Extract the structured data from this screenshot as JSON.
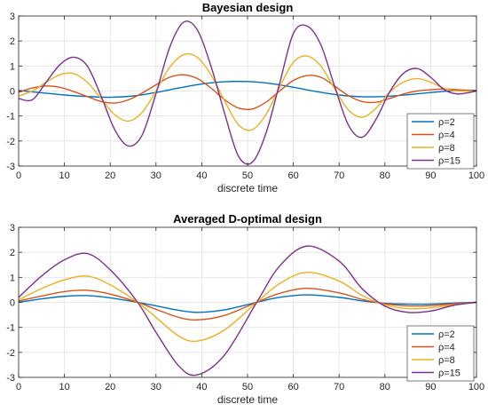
{
  "chart_data": [
    {
      "type": "line",
      "title": "Bayesian design",
      "xlabel": "discrete time",
      "ylabel": "",
      "xlim": [
        0,
        100
      ],
      "ylim": [
        -3,
        3
      ],
      "xticks": [
        0,
        10,
        20,
        30,
        40,
        50,
        60,
        70,
        80,
        90,
        100
      ],
      "yticks": [
        -3,
        -2,
        -1,
        0,
        1,
        2,
        3
      ],
      "grid": true,
      "legend": "bottom-right",
      "series": [
        {
          "name": "ρ=2",
          "color": "#0072BD",
          "x": [
            0,
            5,
            10,
            15,
            20,
            25,
            30,
            35,
            40,
            45,
            50,
            55,
            60,
            65,
            70,
            75,
            80,
            85,
            90,
            95,
            100
          ],
          "y": [
            0.02,
            -0.07,
            -0.16,
            -0.22,
            -0.25,
            -0.2,
            -0.06,
            0.12,
            0.28,
            0.37,
            0.38,
            0.3,
            0.15,
            -0.02,
            -0.16,
            -0.23,
            -0.22,
            -0.15,
            -0.06,
            0.01,
            0.03
          ]
        },
        {
          "name": "ρ=4",
          "color": "#D95319",
          "x": [
            0,
            3,
            6,
            9,
            12,
            15,
            18,
            21,
            24,
            27,
            30,
            33,
            36,
            39,
            42,
            45,
            48,
            51,
            54,
            57,
            60,
            63,
            66,
            69,
            72,
            75,
            78,
            81,
            84,
            87,
            90,
            93,
            96,
            100
          ],
          "y": [
            -0.05,
            0.12,
            0.2,
            0.15,
            -0.02,
            -0.22,
            -0.42,
            -0.48,
            -0.35,
            -0.08,
            0.25,
            0.55,
            0.65,
            0.5,
            0.12,
            -0.35,
            -0.68,
            -0.72,
            -0.45,
            0.0,
            0.42,
            0.62,
            0.55,
            0.2,
            -0.18,
            -0.42,
            -0.45,
            -0.3,
            -0.12,
            0.0,
            0.05,
            0.08,
            0.05,
            0.0
          ]
        },
        {
          "name": "ρ=8",
          "color": "#EDB120",
          "x": [
            0,
            3,
            6,
            9,
            12,
            15,
            18,
            21,
            24,
            27,
            30,
            33,
            36,
            39,
            42,
            45,
            48,
            51,
            54,
            57,
            60,
            63,
            66,
            69,
            72,
            75,
            78,
            81,
            84,
            87,
            90,
            93,
            96,
            100
          ],
          "y": [
            -0.2,
            0.0,
            0.35,
            0.65,
            0.7,
            0.35,
            -0.3,
            -0.95,
            -1.2,
            -0.85,
            0.0,
            0.95,
            1.45,
            1.35,
            0.65,
            -0.4,
            -1.35,
            -1.55,
            -0.95,
            0.15,
            1.15,
            1.4,
            1.0,
            0.1,
            -0.75,
            -1.05,
            -0.7,
            -0.05,
            0.35,
            0.5,
            0.35,
            0.1,
            0.0,
            0.0
          ]
        },
        {
          "name": "ρ=15",
          "color": "#7E2F8E",
          "x": [
            0,
            3,
            6,
            9,
            12,
            15,
            18,
            21,
            24,
            27,
            30,
            33,
            36,
            39,
            42,
            45,
            48,
            51,
            54,
            57,
            60,
            63,
            66,
            69,
            72,
            75,
            78,
            81,
            84,
            87,
            90,
            93,
            96,
            100
          ],
          "y": [
            -0.3,
            -0.35,
            0.35,
            1.05,
            1.35,
            1.0,
            -0.2,
            -1.55,
            -2.2,
            -1.75,
            -0.1,
            1.75,
            2.75,
            2.45,
            1.0,
            -0.9,
            -2.6,
            -2.85,
            -1.7,
            0.3,
            2.3,
            2.6,
            1.85,
            0.2,
            -1.35,
            -1.85,
            -1.15,
            -0.05,
            0.7,
            0.9,
            0.55,
            0.05,
            -0.12,
            0.0
          ]
        }
      ]
    },
    {
      "type": "line",
      "title": "Averaged D-optimal design",
      "xlabel": "discrete time",
      "ylabel": "",
      "xlim": [
        0,
        100
      ],
      "ylim": [
        -3,
        3
      ],
      "xticks": [
        0,
        10,
        20,
        30,
        40,
        50,
        60,
        70,
        80,
        90,
        100
      ],
      "yticks": [
        -3,
        -2,
        -1,
        0,
        1,
        2,
        3
      ],
      "grid": true,
      "legend": "bottom-right",
      "series": [
        {
          "name": "ρ=2",
          "color": "#0072BD",
          "x": [
            0,
            5,
            10,
            15,
            20,
            26,
            30,
            35,
            39,
            45,
            52,
            57,
            63,
            70,
            75,
            80,
            85,
            90,
            95,
            100
          ],
          "y": [
            0.0,
            0.14,
            0.24,
            0.27,
            0.18,
            0.0,
            -0.14,
            -0.32,
            -0.4,
            -0.3,
            0.0,
            0.2,
            0.3,
            0.2,
            0.06,
            -0.04,
            -0.07,
            -0.07,
            -0.03,
            0.0
          ]
        },
        {
          "name": "ρ=4",
          "color": "#D95319",
          "x": [
            0,
            5,
            10,
            15,
            20,
            26,
            30,
            35,
            39,
            45,
            52,
            57,
            63,
            70,
            75,
            80,
            85,
            90,
            95,
            100
          ],
          "y": [
            0.05,
            0.25,
            0.43,
            0.48,
            0.33,
            0.0,
            -0.28,
            -0.6,
            -0.7,
            -0.52,
            0.0,
            0.36,
            0.56,
            0.38,
            0.12,
            -0.06,
            -0.14,
            -0.13,
            -0.06,
            0.0
          ]
        },
        {
          "name": "ρ=8",
          "color": "#EDB120",
          "x": [
            0,
            5,
            10,
            15,
            20,
            26,
            30,
            35,
            39,
            45,
            52,
            57,
            63,
            70,
            75,
            80,
            85,
            90,
            95,
            100
          ],
          "y": [
            0.1,
            0.55,
            0.9,
            1.05,
            0.7,
            0.0,
            -0.6,
            -1.35,
            -1.55,
            -1.1,
            0.0,
            0.75,
            1.2,
            0.85,
            0.28,
            -0.1,
            -0.25,
            -0.22,
            -0.1,
            0.0
          ]
        },
        {
          "name": "ρ=15",
          "color": "#7E2F8E",
          "x": [
            0,
            5,
            10,
            15,
            20,
            26,
            30,
            35,
            39,
            45,
            52,
            57,
            63,
            70,
            75,
            80,
            85,
            90,
            95,
            100
          ],
          "y": [
            0.2,
            1.05,
            1.7,
            1.95,
            1.3,
            0.0,
            -1.2,
            -2.55,
            -2.9,
            -2.1,
            0.0,
            1.45,
            2.25,
            1.65,
            0.55,
            -0.15,
            -0.4,
            -0.35,
            -0.12,
            0.0
          ]
        }
      ]
    }
  ]
}
